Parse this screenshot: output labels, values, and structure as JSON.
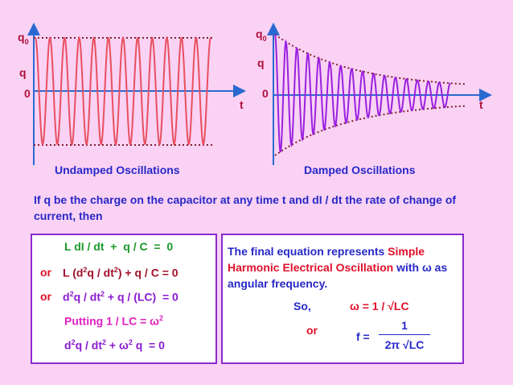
{
  "undamped": {
    "q0": {
      "base": "q",
      "sub": "0"
    },
    "q": "q",
    "zero": "0",
    "t": "t",
    "caption": "Undamped Oscillations"
  },
  "damped": {
    "q0": {
      "base": "q",
      "sub": "0"
    },
    "q": "q",
    "zero": "0",
    "t": "t",
    "caption": "Damped Oscillations"
  },
  "intro": "If q be the charge on the capacitor at any time t and dI / dt the rate of change of current, then",
  "left_box": {
    "lines": [
      {
        "color": "#1a9a2a",
        "parts": [
          {
            "text": "L dI / dt  +  q / C  =  0"
          }
        ]
      },
      {
        "prefix": "or",
        "color": "#a0102a",
        "parts": [
          {
            "text": "L (d"
          },
          {
            "sup": "2"
          },
          {
            "text": "q / dt"
          },
          {
            "sup": "2"
          },
          {
            "text": ") + q / C = 0"
          }
        ]
      },
      {
        "prefix": "or",
        "color": "#8a1ad0",
        "parts": [
          {
            "text": "d"
          },
          {
            "sup": "2"
          },
          {
            "text": "q / dt"
          },
          {
            "sup": "2"
          },
          {
            "text": " + q / (LC)  = 0"
          }
        ]
      },
      {
        "color": "#e020c0",
        "parts": [
          {
            "text": "Putting 1 / LC = ω"
          },
          {
            "sup": "2"
          }
        ]
      },
      {
        "color": "#8a1ad0",
        "parts": [
          {
            "text": "d"
          },
          {
            "sup": "2"
          },
          {
            "text": "q / dt"
          },
          {
            "sup": "2"
          },
          {
            "text": " + ω"
          },
          {
            "sup": "2"
          },
          {
            "text": " q  = 0"
          }
        ]
      }
    ]
  },
  "right_box": {
    "statement": [
      {
        "text": "The final equation represents "
      },
      {
        "text": "Simple Harmonic Electrical Oscillation",
        "color": "#e0102a"
      },
      {
        "text": "  with ω as angular frequency."
      }
    ],
    "so": "So,",
    "omega": "ω = 1 / √LC",
    "or": "or",
    "f": "f =",
    "numerator": "1",
    "denominator": "2π √LC"
  }
}
